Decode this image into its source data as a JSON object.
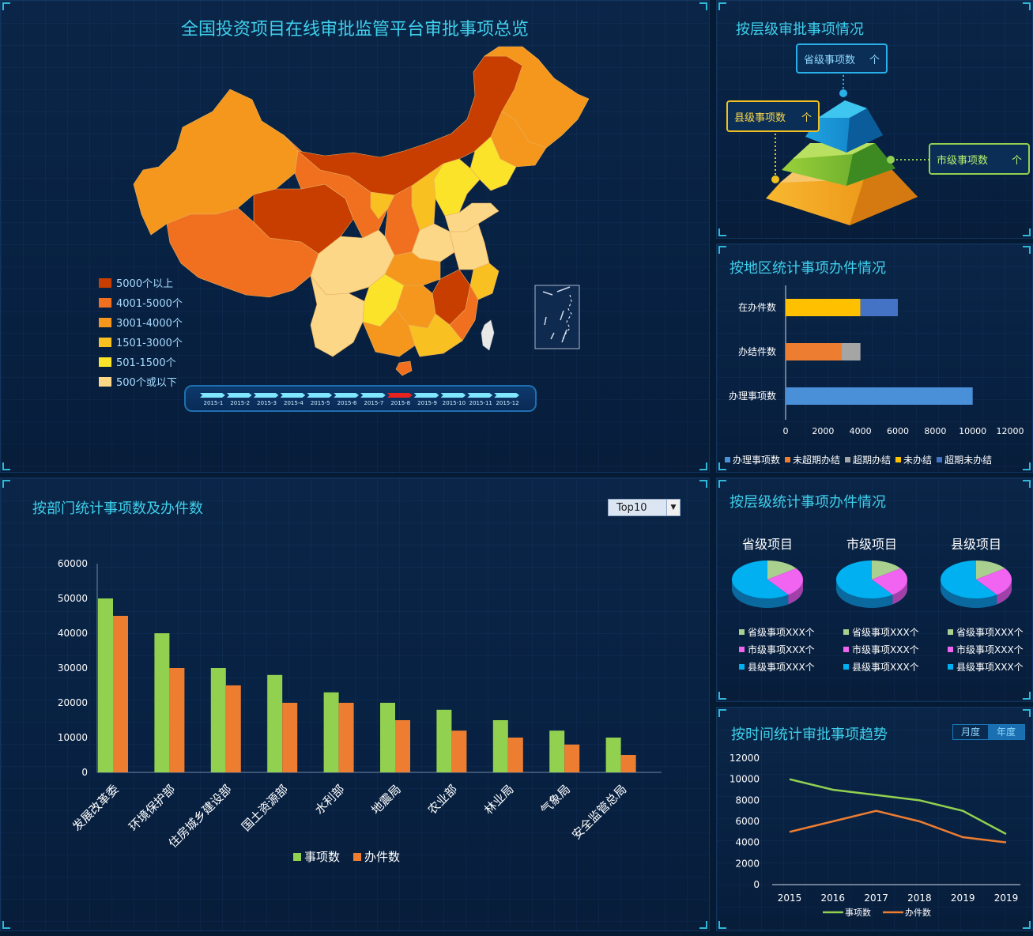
{
  "map": {
    "title": "全国投资项目在线审批监管平台审批事项总览",
    "legend": [
      {
        "label": "5000个以上",
        "color": "#c83d00"
      },
      {
        "label": "4001-5000个",
        "color": "#f07020"
      },
      {
        "label": "3001-4000个",
        "color": "#f4971c"
      },
      {
        "label": "1501-3000个",
        "color": "#f8c020"
      },
      {
        "label": "501-1500个",
        "color": "#fbe32a"
      },
      {
        "label": "500个或以下",
        "color": "#fbd787"
      }
    ],
    "timeline": [
      "2015-1",
      "2015-2",
      "2015-3",
      "2015-4",
      "2015-5",
      "2015-6",
      "2015-7",
      "2015-8",
      "2015-9",
      "2015-10",
      "2015-11",
      "2015-12"
    ],
    "timeline_active": "2015-8"
  },
  "pyramid": {
    "title": "按层级审批事项情况",
    "top_label": "省级事项数",
    "left_label": "县级事项数",
    "right_label": "市级事项数",
    "unit": "个"
  },
  "region": {
    "title": "按地区统计事项办件情况",
    "chart_data": {
      "type": "bar",
      "orientation": "horizontal",
      "categories": [
        "在办件数",
        "办结件数",
        "办理事项数"
      ],
      "series": [
        {
          "name": "办理事项数",
          "color": "#4a90d9",
          "values": [
            0,
            0,
            10000
          ]
        },
        {
          "name": "未超期办结",
          "color": "#ed7d31",
          "values": [
            0,
            3000,
            0
          ]
        },
        {
          "name": "超期办结",
          "color": "#a5a5a5",
          "values": [
            0,
            1000,
            0
          ]
        },
        {
          "name": "未办结",
          "color": "#ffc000",
          "values": [
            4000,
            0,
            0
          ]
        },
        {
          "name": "超期未办结",
          "color": "#4472c4",
          "values": [
            2000,
            0,
            0
          ]
        }
      ],
      "xlim": [
        0,
        12000
      ],
      "xticks": [
        "0",
        "2000",
        "4000",
        "6000",
        "8000",
        "10000",
        "12000"
      ]
    }
  },
  "dept": {
    "title": "按部门统计事项数及办件数",
    "select_value": "Top10",
    "chart_data": {
      "type": "bar",
      "categories": [
        "发展改革委",
        "环境保护部",
        "住房城乡建设部",
        "国土资源部",
        "水利部",
        "地震局",
        "农业部",
        "林业局",
        "气象局",
        "安全监管总局"
      ],
      "series": [
        {
          "name": "事项数",
          "color": "#92d050",
          "values": [
            50000,
            40000,
            30000,
            28000,
            23000,
            20000,
            18000,
            15000,
            12000,
            10000
          ]
        },
        {
          "name": "办件数",
          "color": "#ed7d31",
          "values": [
            45000,
            30000,
            25000,
            20000,
            20000,
            15000,
            12000,
            10000,
            8000,
            5000
          ]
        }
      ],
      "ylim": [
        0,
        60000
      ],
      "yticks": [
        "60000",
        "50000",
        "40000",
        "30000",
        "20000",
        "10000",
        "0"
      ]
    }
  },
  "level": {
    "title": "按层级统计事项办件情况",
    "pies": [
      {
        "title": "省级项目"
      },
      {
        "title": "市级项目"
      },
      {
        "title": "县级项目"
      }
    ],
    "legend": [
      {
        "label": "省级事项XXX个",
        "color": "#a9d08e"
      },
      {
        "label": "市级事项XXX个",
        "color": "#f163f1"
      },
      {
        "label": "县级事项XXX个",
        "color": "#00b0f0"
      }
    ],
    "pie_shares": [
      0.15,
      0.25,
      0.6
    ]
  },
  "trend": {
    "title": "按时间统计审批事项趋势",
    "tab_month": "月度",
    "tab_year": "年度",
    "chart_data": {
      "type": "line",
      "x": [
        "2015",
        "2016",
        "2017",
        "2018",
        "2019",
        "2019"
      ],
      "series": [
        {
          "name": "事项数",
          "color": "#92d050",
          "values": [
            10000,
            9000,
            8500,
            8000,
            7000,
            4800
          ]
        },
        {
          "name": "办件数",
          "color": "#ed7d31",
          "values": [
            5000,
            6000,
            7000,
            6000,
            4500,
            4000
          ]
        }
      ],
      "ylim": [
        0,
        12000
      ],
      "yticks": [
        "12000",
        "10000",
        "8000",
        "6000",
        "4000",
        "2000",
        "0"
      ]
    }
  }
}
